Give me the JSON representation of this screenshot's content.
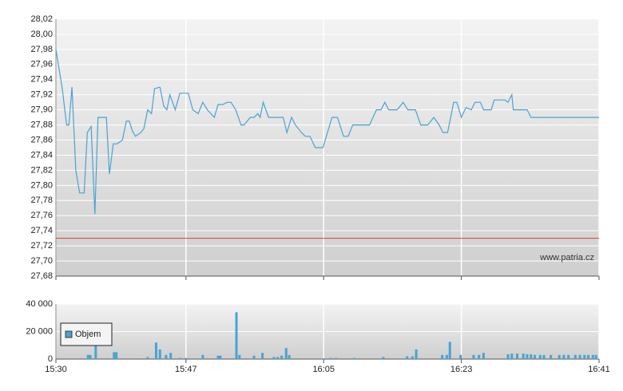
{
  "chart_data": [
    {
      "type": "line",
      "x": [
        930.0,
        930.8,
        931.4,
        931.7,
        932.1,
        932.6,
        933.1,
        933.7,
        934.1,
        934.6,
        935.1,
        935.5,
        936.6,
        937.0,
        937.5,
        938.0,
        938.7,
        939.2,
        939.6,
        940.0,
        940.4,
        941.1,
        941.5,
        942.0,
        942.5,
        942.9,
        943.6,
        944.1,
        944.5,
        944.9,
        945.6,
        946.2,
        946.7,
        947.3,
        947.9,
        948.6,
        949.2,
        949.8,
        950.7,
        951.2,
        951.8,
        952.4,
        952.9,
        953.5,
        954.2,
        954.6,
        955.4,
        955.9,
        956.4,
        956.7,
        957.1,
        957.8,
        958.6,
        959.7,
        960.2,
        960.8,
        961.3,
        962.1,
        962.6,
        963.2,
        963.9,
        964.9,
        966.1,
        966.8,
        967.6,
        968.2,
        968.8,
        971.0,
        971.9,
        972.5,
        973.0,
        973.5,
        974.6,
        975.4,
        976.0,
        977.0,
        977.7,
        978.6,
        979.4,
        980.1,
        980.6,
        981.2,
        982.0,
        982.4,
        983.0,
        983.6,
        984.3,
        984.8,
        985.5,
        985.9,
        986.9,
        987.3,
        988.7,
        989.1,
        989.6,
        989.8,
        991.6,
        992.1,
        1001.0
      ],
      "values": [
        27.98,
        27.93,
        27.88,
        27.88,
        27.93,
        27.82,
        27.79,
        27.79,
        27.87,
        27.878,
        27.762,
        27.89,
        27.89,
        27.815,
        27.855,
        27.855,
        27.86,
        27.885,
        27.885,
        27.872,
        27.865,
        27.87,
        27.875,
        27.9,
        27.895,
        27.928,
        27.93,
        27.905,
        27.9,
        27.92,
        27.9,
        27.922,
        27.922,
        27.922,
        27.9,
        27.895,
        27.91,
        27.9,
        27.89,
        27.907,
        27.907,
        27.91,
        27.91,
        27.9,
        27.88,
        27.88,
        27.89,
        27.89,
        27.895,
        27.89,
        27.91,
        27.89,
        27.89,
        27.89,
        27.87,
        27.89,
        27.88,
        27.87,
        27.865,
        27.865,
        27.85,
        27.85,
        27.89,
        27.89,
        27.865,
        27.865,
        27.88,
        27.88,
        27.9,
        27.9,
        27.91,
        27.9,
        27.9,
        27.91,
        27.9,
        27.9,
        27.88,
        27.88,
        27.89,
        27.88,
        27.87,
        27.87,
        27.91,
        27.91,
        27.89,
        27.903,
        27.9,
        27.91,
        27.91,
        27.9,
        27.9,
        27.913,
        27.913,
        27.91,
        27.92,
        27.9,
        27.9,
        27.89,
        27.89
      ],
      "color": "#4aa3d0",
      "xlim": [
        930,
        1001
      ],
      "ylim": [
        27.68,
        28.02
      ],
      "yticks": [
        {
          "value": 27.68,
          "label": "27,68"
        },
        {
          "value": 27.7,
          "label": "27,70"
        },
        {
          "value": 27.72,
          "label": "27,72"
        },
        {
          "value": 27.74,
          "label": "27,74"
        },
        {
          "value": 27.76,
          "label": "27,76"
        },
        {
          "value": 27.78,
          "label": "27,78"
        },
        {
          "value": 27.8,
          "label": "27,80"
        },
        {
          "value": 27.82,
          "label": "27,82"
        },
        {
          "value": 27.84,
          "label": "27,84"
        },
        {
          "value": 27.86,
          "label": "27,86"
        },
        {
          "value": 27.88,
          "label": "27,88"
        },
        {
          "value": 27.9,
          "label": "27,90"
        },
        {
          "value": 27.92,
          "label": "27,92"
        },
        {
          "value": 27.94,
          "label": "27,94"
        },
        {
          "value": 27.96,
          "label": "27,96"
        },
        {
          "value": 27.98,
          "label": "27,98"
        },
        {
          "value": 28.0,
          "label": "28,00"
        },
        {
          "value": 28.02,
          "label": "28,02"
        }
      ],
      "reference_line": {
        "value": 27.73,
        "color": "#d04040"
      },
      "annotation": "www.patria.cz",
      "grid": true
    },
    {
      "type": "bar",
      "x": [
        934.2,
        934.5,
        935.2,
        937.6,
        937.9,
        940.6,
        942.0,
        943.1,
        943.6,
        944.4,
        945.0,
        946.2,
        947.0,
        949.2,
        951.2,
        951.5,
        953.6,
        954.0,
        955.9,
        957.0,
        958.5,
        959.0,
        959.5,
        960.1,
        960.5,
        964.0,
        964.7,
        965.9,
        966.6,
        969.0,
        972.8,
        975.9,
        976.6,
        977.1,
        980.5,
        981.1,
        981.5,
        982.9,
        984.6,
        985.3,
        985.9,
        989.1,
        989.6,
        990.3,
        991.1,
        991.6,
        992.1,
        992.6,
        993.3,
        993.8,
        994.7,
        995.8,
        996.4,
        997.0,
        997.9,
        998.5,
        999.1,
        999.6,
        1000.2,
        1000.6
      ],
      "series": [
        {
          "name": "Objem",
          "color": "#4aa3d0",
          "values": [
            3000,
            3000,
            22000,
            5000,
            5000,
            500,
            1500,
            12000,
            7000,
            3000,
            4500,
            800,
            800,
            3000,
            2500,
            2500,
            34000,
            3000,
            2500,
            4500,
            1500,
            1500,
            2500,
            8000,
            3000,
            500,
            500,
            800,
            800,
            800,
            1500,
            2000,
            2000,
            7000,
            3000,
            3000,
            12500,
            3000,
            3000,
            3000,
            4500,
            3500,
            4000,
            4000,
            4000,
            3500,
            3500,
            3000,
            3000,
            3000,
            3000,
            3000,
            3000,
            3000,
            3000,
            3000,
            3000,
            3000,
            3000,
            3000
          ]
        }
      ],
      "xlim": [
        930,
        1001
      ],
      "xticks": [
        {
          "value": 930,
          "label": "15:30"
        },
        {
          "value": 947,
          "label": "15:47"
        },
        {
          "value": 965,
          "label": "16:05"
        },
        {
          "value": 983,
          "label": "16:23"
        },
        {
          "value": 1001,
          "label": "16:41"
        }
      ],
      "ylim": [
        0,
        40000
      ],
      "yticks": [
        0,
        {
          "value": 20000,
          "label": "20 000"
        },
        {
          "value": 40000,
          "label": "40 000"
        }
      ],
      "grid": true
    }
  ]
}
